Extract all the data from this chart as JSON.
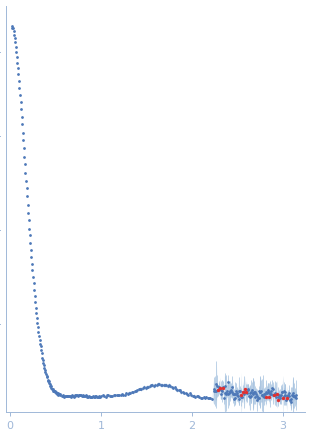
{
  "title": "",
  "xlabel": "",
  "ylabel": "",
  "xlim": [
    -0.05,
    3.25
  ],
  "ylim": [
    -0.015,
    0.42
  ],
  "point_color_main": "#4d78b8",
  "point_color_outlier": "#e03030",
  "error_bar_color": "#a8c4e0",
  "error_fill_alpha": 0.35,
  "spine_color": "#a0b8d8",
  "tick_color": "#a0b8d8",
  "tick_label_color": "#7090c0",
  "background": "#ffffff",
  "point_size": 4,
  "figsize": [
    3.11,
    4.37
  ],
  "dpi": 100
}
